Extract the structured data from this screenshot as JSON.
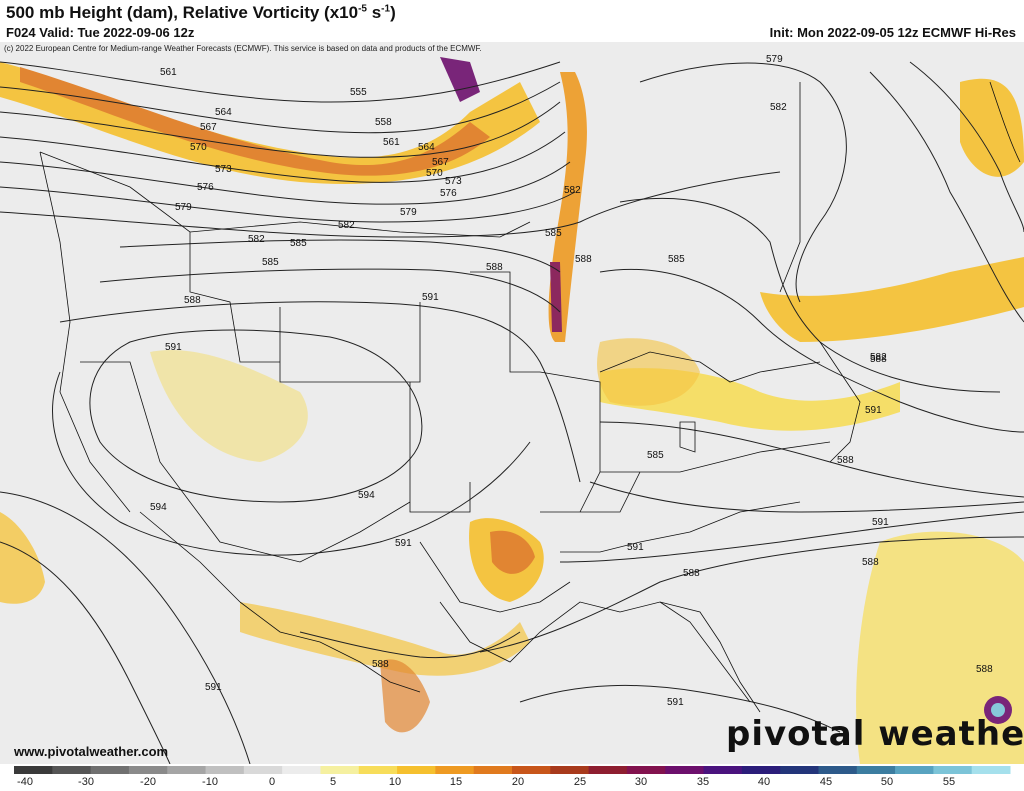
{
  "header": {
    "title": "500 mb Height (dam), Relative Vorticity (x10",
    "title_exp": "-5",
    "title_unit": " s",
    "title_unit_exp": "-1",
    "title_close": ")",
    "valid": "F024 Valid: Tue 2022-09-06 12z",
    "init": "Init: Mon 2022-09-05 12z ECMWF Hi-Res",
    "copyright": "(c) 2022 European Centre for Medium-range Weather Forecasts (ECMWF). This service is based on data and products of the ECMWF."
  },
  "footer": {
    "url": "www.pivotalweather.com",
    "logo": "pivotal weather"
  },
  "contour_labels": [
    "561",
    "564",
    "567",
    "570",
    "573",
    "576",
    "579",
    "582",
    "585",
    "588",
    "591",
    "594",
    "555",
    "558",
    "561",
    "564",
    "567",
    "570",
    "573",
    "576",
    "579",
    "582",
    "585",
    "588",
    "591",
    "594",
    "582",
    "585",
    "588",
    "591",
    "588",
    "591",
    "588",
    "591",
    "588",
    "591",
    "588",
    "591",
    "579",
    "582",
    "585",
    "582",
    "585",
    "588",
    "591",
    "588"
  ],
  "colorbar": {
    "ticks": [
      "-40",
      "-30",
      "-20",
      "-10",
      "0",
      "5",
      "10",
      "15",
      "20",
      "25",
      "30",
      "35",
      "40",
      "45",
      "50",
      "55"
    ],
    "colors": [
      "#3a3a3a",
      "#555555",
      "#707070",
      "#8a8a8a",
      "#a5a5a5",
      "#c0c0c0",
      "#d9d9d9",
      "#ececec",
      "#f5f0a0",
      "#f7dd5a",
      "#f5c02e",
      "#ee9a22",
      "#e07a1e",
      "#c8561a",
      "#a83a1c",
      "#8e1e30",
      "#82124e",
      "#6c0f6c",
      "#4a137e",
      "#2b1d7a",
      "#23357a",
      "#2d5a8a",
      "#3c7da0",
      "#58a3c0",
      "#7cc4d8",
      "#a5e0ec"
    ]
  }
}
